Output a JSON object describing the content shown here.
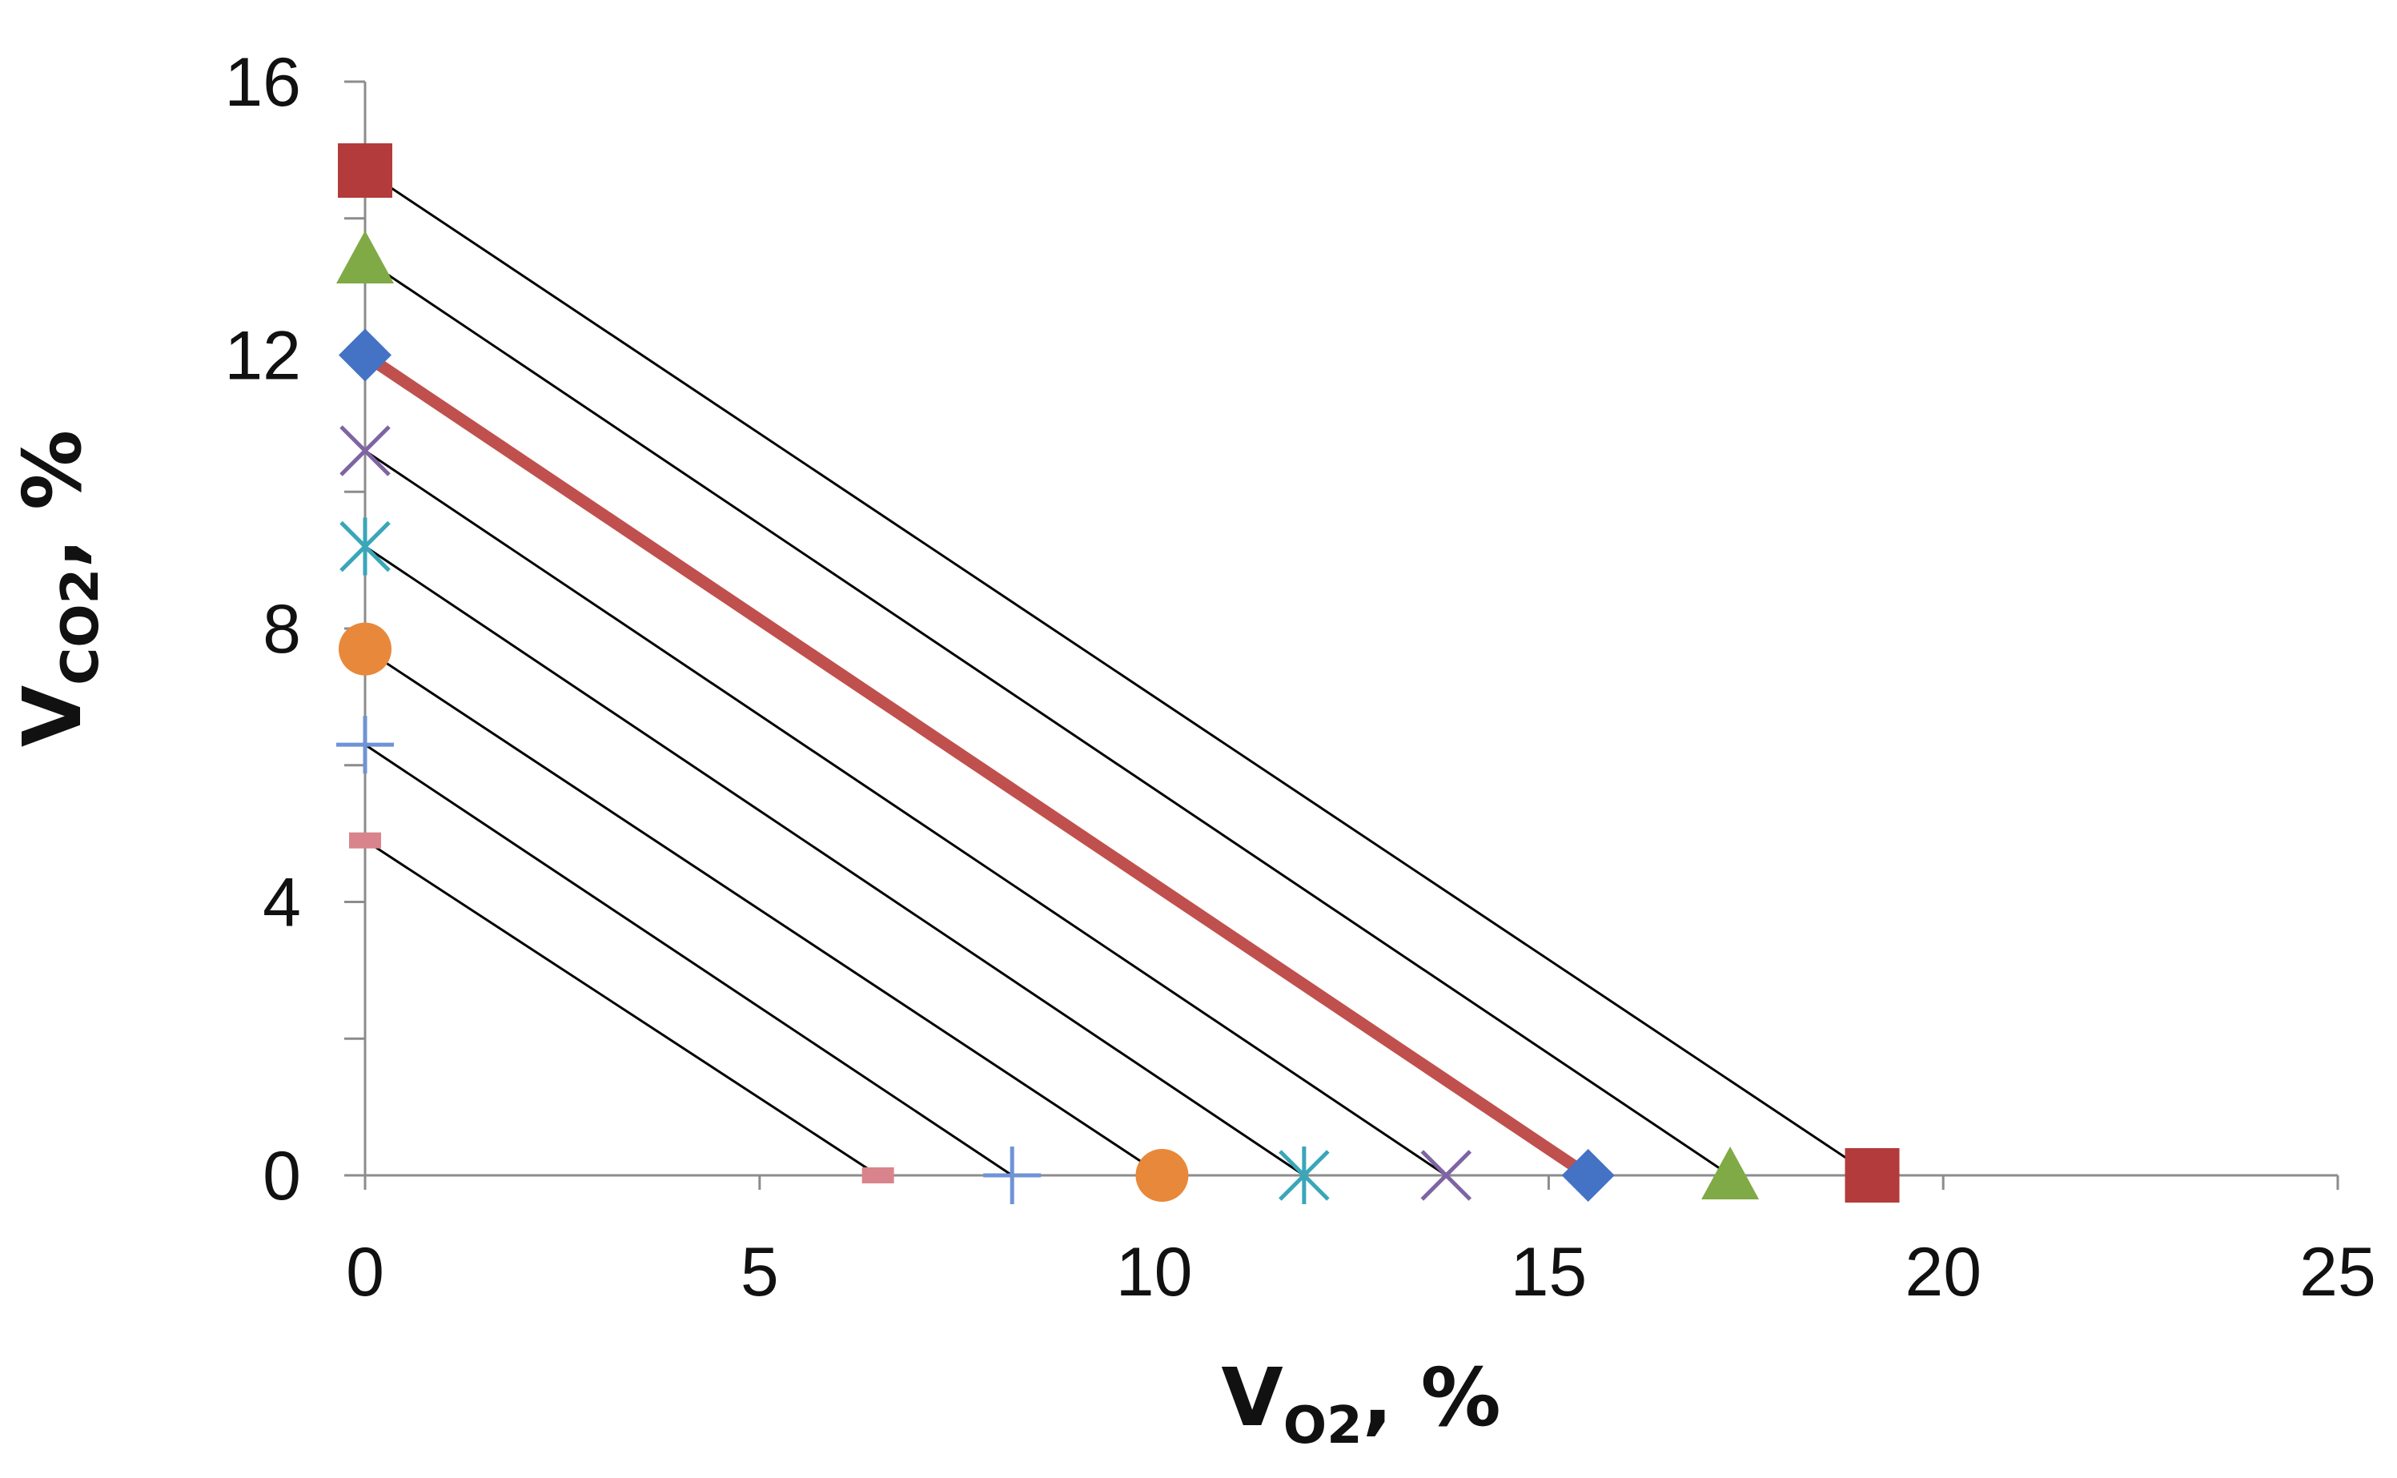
{
  "chart_data": {
    "type": "scatter",
    "title": "",
    "xlabel": {
      "main": "V",
      "sub": "O2",
      "suffix": ", %"
    },
    "ylabel": {
      "main": "V",
      "sub": "CO2",
      "suffix": ", %"
    },
    "xlim": [
      0,
      25
    ],
    "ylim": [
      0,
      16
    ],
    "xticks": [
      0,
      5,
      10,
      15,
      20,
      25
    ],
    "yticks": [
      0,
      4,
      8,
      12,
      16
    ],
    "ytick_minor_step": 2,
    "grid": false,
    "legend": "none",
    "series": [
      {
        "marker": "dash",
        "color": "#d9848c",
        "line_color": "#000000",
        "points": [
          [
            0,
            4.9
          ],
          [
            6.5,
            0
          ]
        ]
      },
      {
        "marker": "plus",
        "color": "#6f93d6",
        "line_color": "#000000",
        "points": [
          [
            0,
            6.3
          ],
          [
            8.2,
            0
          ]
        ]
      },
      {
        "marker": "circle",
        "color": "#e8883a",
        "line_color": "#000000",
        "points": [
          [
            0,
            7.7
          ],
          [
            10.1,
            0
          ]
        ]
      },
      {
        "marker": "asterisk",
        "color": "#3aa6b9",
        "line_color": "#000000",
        "points": [
          [
            0,
            9.2
          ],
          [
            11.9,
            0
          ]
        ]
      },
      {
        "marker": "x",
        "color": "#7f64a3",
        "line_color": "#000000",
        "points": [
          [
            0,
            10.6
          ],
          [
            13.7,
            0
          ]
        ]
      },
      {
        "marker": "diamond",
        "color": "#4472c4",
        "line_color": "#c0504d",
        "points": [
          [
            0,
            12.0
          ],
          [
            15.5,
            0
          ]
        ]
      },
      {
        "marker": "triangle",
        "color": "#7faa45",
        "line_color": "#000000",
        "points": [
          [
            0,
            13.4
          ],
          [
            17.3,
            0
          ]
        ]
      },
      {
        "marker": "square",
        "color": "#b33b3b",
        "line_color": "#000000",
        "points": [
          [
            0,
            14.7
          ],
          [
            19.1,
            0
          ]
        ]
      }
    ]
  }
}
